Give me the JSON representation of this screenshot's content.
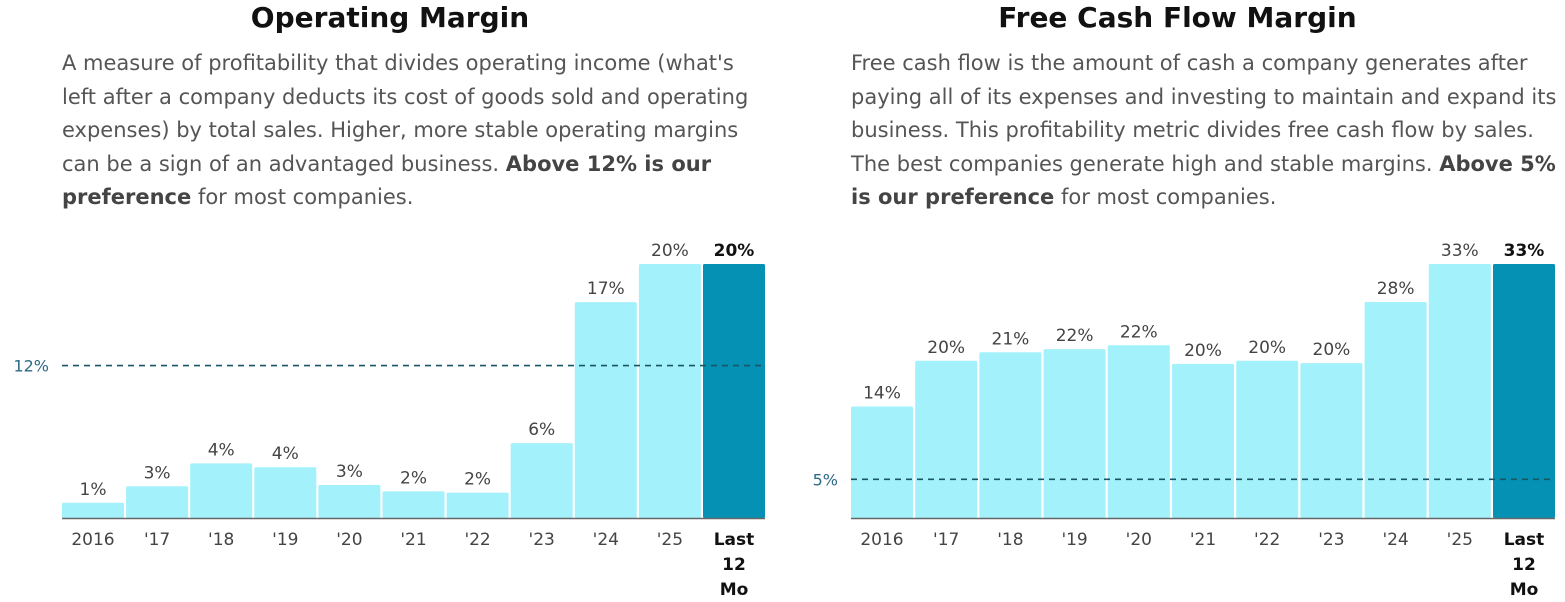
{
  "charts": [
    {
      "title": "Operating Margin",
      "desc_parts": [
        "A measure of profitability that divides operating income (what's left after a company deducts its cost of goods sold and operating expenses) by total sales. Higher, more stable operating margins can be a sign of an advantaged business. ",
        "Above 12% is our preference",
        " for most companies."
      ]
    },
    {
      "title": "Free Cash Flow Margin",
      "desc_parts": [
        "Free cash flow is the amount of cash a company generates after paying all of its expenses and investing to maintain and expand its business. This profitability metric divides free cash flow by sales. The best companies generate high and stable margins. ",
        "Above 5% is our preference",
        " for most companies."
      ]
    }
  ],
  "chart_data": [
    {
      "type": "bar",
      "title": "Operating Margin",
      "categories": [
        "2016",
        "'17",
        "'18",
        "'19",
        "'20",
        "'21",
        "'22",
        "'23",
        "'24",
        "'25",
        "Last 12 Mo"
      ],
      "values": [
        1,
        3,
        4,
        4,
        3,
        2,
        2,
        6,
        17,
        20,
        20
      ],
      "value_labels": [
        "1%",
        "3%",
        "4%",
        "4%",
        "3%",
        "2%",
        "2%",
        "6%",
        "17%",
        "20%",
        "20%"
      ],
      "values_precise": [
        1.2,
        2.5,
        4.3,
        4.0,
        2.6,
        2.1,
        2.0,
        5.9,
        17.0,
        20.0,
        20.0
      ],
      "ylim": [
        0,
        20
      ],
      "reference_line": {
        "value": 12,
        "label": "12%"
      },
      "highlight_last": true,
      "colors": {
        "bar": "#a3f1fb",
        "highlight": "#0591b3",
        "reference": "#1a5566",
        "reference_label": "#2e6a86",
        "axis": "#666666"
      }
    },
    {
      "type": "bar",
      "title": "Free Cash Flow Margin",
      "categories": [
        "2016",
        "'17",
        "'18",
        "'19",
        "'20",
        "'21",
        "'22",
        "'23",
        "'24",
        "'25",
        "Last 12 Mo"
      ],
      "values": [
        14,
        20,
        21,
        22,
        22,
        20,
        20,
        20,
        28,
        33,
        33
      ],
      "value_labels": [
        "14%",
        "20%",
        "21%",
        "22%",
        "22%",
        "20%",
        "20%",
        "20%",
        "28%",
        "33%",
        "33%"
      ],
      "values_precise": [
        14.4,
        20.3,
        21.4,
        21.8,
        22.3,
        19.9,
        20.3,
        20.0,
        27.9,
        32.8,
        32.8
      ],
      "ylim": [
        0,
        32.8
      ],
      "reference_line": {
        "value": 5,
        "label": "5%"
      },
      "highlight_last": true,
      "colors": {
        "bar": "#a3f1fb",
        "highlight": "#0591b3",
        "reference": "#1a5566",
        "reference_label": "#2e6a86",
        "axis": "#666666"
      }
    }
  ]
}
